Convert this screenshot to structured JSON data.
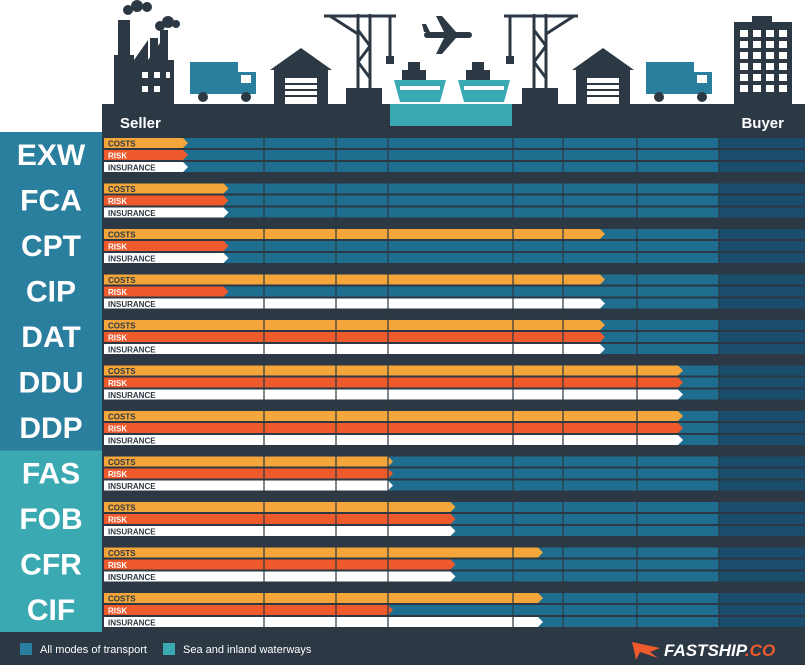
{
  "header": {
    "seller": "Seller",
    "buyer": "Buyer"
  },
  "row_labels": {
    "costs": "COSTS",
    "risk": "RISK",
    "insurance": "INSURANCE"
  },
  "colors": {
    "dark": "#2c3843",
    "all_modes": "#2a7f9e",
    "sea": "#3aa9b2",
    "costs": "#f4a63a",
    "risk": "#ee5a2b",
    "insurance": "#ffffff",
    "bar_blue": "#1f6e8f",
    "bar_blue_buyer": "#1b4e6c"
  },
  "chart_data": {
    "type": "bar",
    "title": "",
    "xlabel": "",
    "ylabel": "",
    "stages": 9,
    "categories": [
      "EXW",
      "FCA",
      "CPT",
      "CIP",
      "DAT",
      "DDU",
      "DDP",
      "FAS",
      "FOB",
      "CFR",
      "CIF"
    ],
    "transport_mode": [
      "all",
      "all",
      "all",
      "all",
      "all",
      "all",
      "all",
      "sea",
      "sea",
      "sea",
      "sea"
    ],
    "series": [
      {
        "name": "Costs",
        "values": [
          0,
          1.5,
          6.5,
          6.5,
          6.5,
          7.5,
          7.5,
          4,
          4.5,
          5.5,
          5.5
        ]
      },
      {
        "name": "Risk",
        "values": [
          0,
          1.5,
          1.5,
          1.5,
          6.5,
          7.5,
          7.5,
          4,
          4.5,
          4.5,
          4
        ]
      },
      {
        "name": "Insurance",
        "values": [
          0,
          1.5,
          1.5,
          6.5,
          6.5,
          7.5,
          7.5,
          4,
          4.5,
          4.5,
          5.5
        ]
      }
    ]
  },
  "legend": [
    {
      "label": "All modes of transport",
      "key": "all_modes"
    },
    {
      "label": "Sea and inland waterways",
      "key": "sea"
    }
  ],
  "brand": {
    "name": "FASTSHIP",
    "suffix": ".CO"
  }
}
